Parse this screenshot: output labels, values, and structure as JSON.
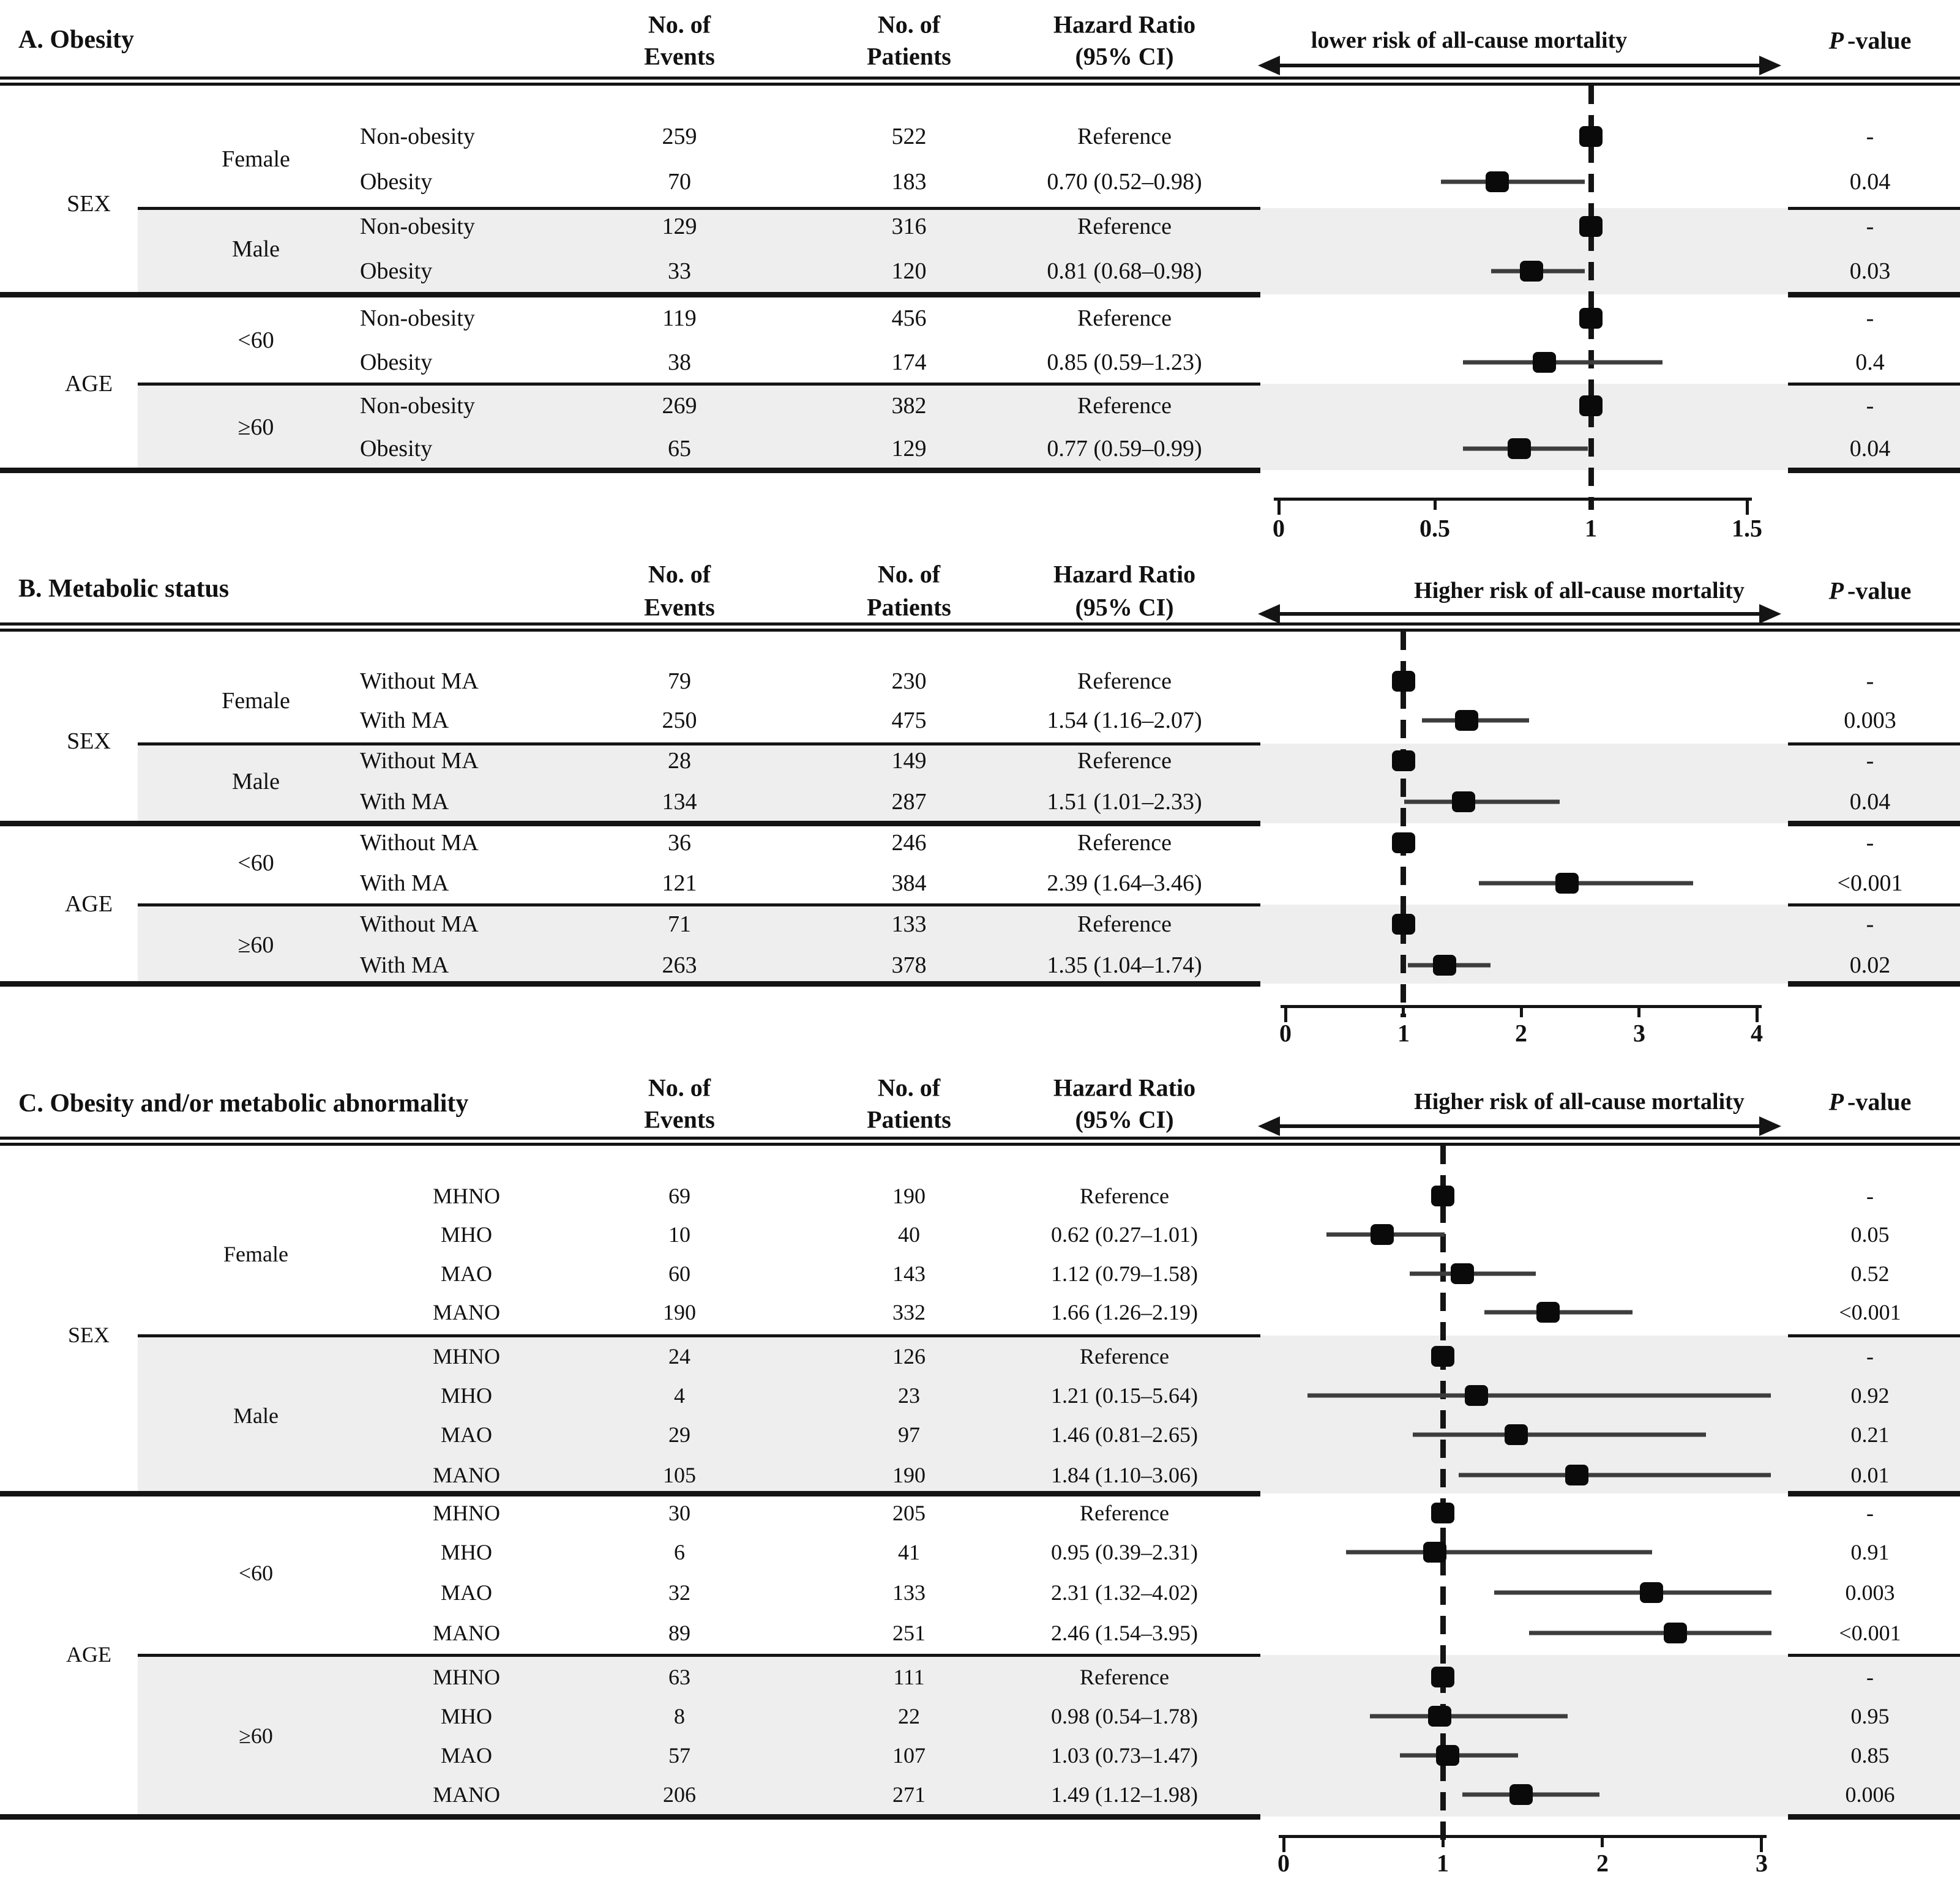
{
  "figure_header": {
    "col_events": [
      "No. of",
      "Events"
    ],
    "col_patients": [
      "No. of",
      "Patients"
    ],
    "col_hr": [
      "Hazard Ratio",
      "(95% CI)"
    ],
    "col_p_italic": "P",
    "col_p_rest": "-value"
  },
  "chart_data": [
    {
      "type": "forest",
      "panel": "A",
      "title": "A. Obesity",
      "arrow_label": "lower risk of all-cause mortality",
      "xlim": [
        0,
        1.5
      ],
      "xticks": [
        "0",
        "0.5",
        "1",
        "1.5"
      ],
      "xtick_values": [
        0,
        0.5,
        1,
        1.5
      ],
      "reference_line": 1,
      "legend_position": "none",
      "grid": false,
      "sections": [
        {
          "category": "SEX",
          "subgroups": [
            {
              "label": "Female",
              "shaded": false,
              "rows": [
                {
                  "arm": "Non-obesity",
                  "events": "259",
                  "patients": "522",
                  "hr_text": "Reference",
                  "hr": 1.0,
                  "ci": null,
                  "p": "-"
                },
                {
                  "arm": "Obesity",
                  "events": "70",
                  "patients": "183",
                  "hr_text": "0.70 (0.52–0.98)",
                  "hr": 0.7,
                  "ci": [
                    0.52,
                    0.98
                  ],
                  "p": "0.04"
                }
              ]
            },
            {
              "label": "Male",
              "shaded": true,
              "rows": [
                {
                  "arm": "Non-obesity",
                  "events": "129",
                  "patients": "316",
                  "hr_text": "Reference",
                  "hr": 1.0,
                  "ci": null,
                  "p": "-"
                },
                {
                  "arm": "Obesity",
                  "events": "33",
                  "patients": "120",
                  "hr_text": "0.81 (0.68–0.98)",
                  "hr": 0.81,
                  "ci": [
                    0.68,
                    0.98
                  ],
                  "p": "0.03"
                }
              ]
            }
          ]
        },
        {
          "category": "AGE",
          "subgroups": [
            {
              "label": "<60",
              "shaded": false,
              "rows": [
                {
                  "arm": "Non-obesity",
                  "events": "119",
                  "patients": "456",
                  "hr_text": "Reference",
                  "hr": 1.0,
                  "ci": null,
                  "p": "-"
                },
                {
                  "arm": "Obesity",
                  "events": "38",
                  "patients": "174",
                  "hr_text": "0.85 (0.59–1.23)",
                  "hr": 0.85,
                  "ci": [
                    0.59,
                    1.23
                  ],
                  "p": "0.4"
                }
              ]
            },
            {
              "label": "≥60",
              "shaded": true,
              "rows": [
                {
                  "arm": "Non-obesity",
                  "events": "269",
                  "patients": "382",
                  "hr_text": "Reference",
                  "hr": 1.0,
                  "ci": null,
                  "p": "-"
                },
                {
                  "arm": "Obesity",
                  "events": "65",
                  "patients": "129",
                  "hr_text": "0.77 (0.59–0.99)",
                  "hr": 0.77,
                  "ci": [
                    0.59,
                    0.99
                  ],
                  "p": "0.04"
                }
              ]
            }
          ]
        }
      ]
    },
    {
      "type": "forest",
      "panel": "B",
      "title": "B. Metabolic status",
      "arrow_label": "Higher risk of all-cause mortality",
      "xlim": [
        0,
        4
      ],
      "xticks": [
        "0",
        "1",
        "2",
        "3",
        "4"
      ],
      "xtick_values": [
        0,
        1,
        2,
        3,
        4
      ],
      "reference_line": 1,
      "legend_position": "none",
      "grid": false,
      "sections": [
        {
          "category": "SEX",
          "subgroups": [
            {
              "label": "Female",
              "shaded": false,
              "rows": [
                {
                  "arm": "Without MA",
                  "events": "79",
                  "patients": "230",
                  "hr_text": "Reference",
                  "hr": 1.0,
                  "ci": null,
                  "p": "-"
                },
                {
                  "arm": "With MA",
                  "events": "250",
                  "patients": "475",
                  "hr_text": "1.54 (1.16–2.07)",
                  "hr": 1.54,
                  "ci": [
                    1.16,
                    2.07
                  ],
                  "p": "0.003"
                }
              ]
            },
            {
              "label": "Male",
              "shaded": true,
              "rows": [
                {
                  "arm": "Without MA",
                  "events": "28",
                  "patients": "149",
                  "hr_text": "Reference",
                  "hr": 1.0,
                  "ci": null,
                  "p": "-"
                },
                {
                  "arm": "With MA",
                  "events": "134",
                  "patients": "287",
                  "hr_text": "1.51 (1.01–2.33)",
                  "hr": 1.51,
                  "ci": [
                    1.01,
                    2.33
                  ],
                  "p": "0.04"
                }
              ]
            }
          ]
        },
        {
          "category": "AGE",
          "subgroups": [
            {
              "label": "<60",
              "shaded": false,
              "rows": [
                {
                  "arm": "Without MA",
                  "events": "36",
                  "patients": "246",
                  "hr_text": "Reference",
                  "hr": 1.0,
                  "ci": null,
                  "p": "-"
                },
                {
                  "arm": "With MA",
                  "events": "121",
                  "patients": "384",
                  "hr_text": "2.39 (1.64–3.46)",
                  "hr": 2.39,
                  "ci": [
                    1.64,
                    3.46
                  ],
                  "p": "<0.001"
                }
              ]
            },
            {
              "label": "≥60",
              "shaded": true,
              "rows": [
                {
                  "arm": "Without MA",
                  "events": "71",
                  "patients": "133",
                  "hr_text": "Reference",
                  "hr": 1.0,
                  "ci": null,
                  "p": "-"
                },
                {
                  "arm": "With MA",
                  "events": "263",
                  "patients": "378",
                  "hr_text": "1.35 (1.04–1.74)",
                  "hr": 1.35,
                  "ci": [
                    1.04,
                    1.74
                  ],
                  "p": "0.02"
                }
              ]
            }
          ]
        }
      ]
    },
    {
      "type": "forest",
      "panel": "C",
      "title": "C. Obesity and/or metabolic abnormality",
      "arrow_label": "Higher risk of all-cause mortality",
      "xlim": [
        0,
        3
      ],
      "xticks": [
        "0",
        "1",
        "2",
        "3"
      ],
      "xtick_values": [
        0,
        1,
        2,
        3
      ],
      "reference_line": 1,
      "legend_position": "none",
      "grid": false,
      "sections": [
        {
          "category": "SEX",
          "subgroups": [
            {
              "label": "Female",
              "shaded": false,
              "rows": [
                {
                  "arm": "MHNO",
                  "events": "69",
                  "patients": "190",
                  "hr_text": "Reference",
                  "hr": 1.0,
                  "ci": null,
                  "p": "-"
                },
                {
                  "arm": "MHO",
                  "events": "10",
                  "patients": "40",
                  "hr_text": "0.62 (0.27–1.01)",
                  "hr": 0.62,
                  "ci": [
                    0.27,
                    1.01
                  ],
                  "p": "0.05"
                },
                {
                  "arm": "MAO",
                  "events": "60",
                  "patients": "143",
                  "hr_text": "1.12 (0.79–1.58)",
                  "hr": 1.12,
                  "ci": [
                    0.79,
                    1.58
                  ],
                  "p": "0.52"
                },
                {
                  "arm": "MANO",
                  "events": "190",
                  "patients": "332",
                  "hr_text": "1.66 (1.26–2.19)",
                  "hr": 1.66,
                  "ci": [
                    1.26,
                    2.19
                  ],
                  "p": "<0.001"
                }
              ]
            },
            {
              "label": "Male",
              "shaded": true,
              "rows": [
                {
                  "arm": "MHNO",
                  "events": "24",
                  "patients": "126",
                  "hr_text": "Reference",
                  "hr": 1.0,
                  "ci": null,
                  "p": "-"
                },
                {
                  "arm": "MHO",
                  "events": "4",
                  "patients": "23",
                  "hr_text": "1.21 (0.15–5.64)",
                  "hr": 1.21,
                  "ci": [
                    0.15,
                    5.64
                  ],
                  "p": "0.92"
                },
                {
                  "arm": "MAO",
                  "events": "29",
                  "patients": "97",
                  "hr_text": "1.46 (0.81–2.65)",
                  "hr": 1.46,
                  "ci": [
                    0.81,
                    2.65
                  ],
                  "p": "0.21"
                },
                {
                  "arm": "MANO",
                  "events": "105",
                  "patients": "190",
                  "hr_text": "1.84 (1.10–3.06)",
                  "hr": 1.84,
                  "ci": [
                    1.1,
                    3.06
                  ],
                  "p": "0.01"
                }
              ]
            }
          ]
        },
        {
          "category": "AGE",
          "subgroups": [
            {
              "label": "<60",
              "shaded": false,
              "rows": [
                {
                  "arm": "MHNO",
                  "events": "30",
                  "patients": "205",
                  "hr_text": "Reference",
                  "hr": 1.0,
                  "ci": null,
                  "p": "-"
                },
                {
                  "arm": "MHO",
                  "events": "6",
                  "patients": "41",
                  "hr_text": "0.95 (0.39–2.31)",
                  "hr": 0.95,
                  "ci": [
                    0.39,
                    2.31
                  ],
                  "p": "0.91"
                },
                {
                  "arm": "MAO",
                  "events": "32",
                  "patients": "133",
                  "hr_text": "2.31 (1.32–4.02)",
                  "hr": 2.31,
                  "ci": [
                    1.32,
                    4.02
                  ],
                  "p": "0.003"
                },
                {
                  "arm": "MANO",
                  "events": "89",
                  "patients": "251",
                  "hr_text": "2.46 (1.54–3.95)",
                  "hr": 2.46,
                  "ci": [
                    1.54,
                    3.95
                  ],
                  "p": "<0.001"
                }
              ]
            },
            {
              "label": "≥60",
              "shaded": true,
              "rows": [
                {
                  "arm": "MHNO",
                  "events": "63",
                  "patients": "111",
                  "hr_text": "Reference",
                  "hr": 1.0,
                  "ci": null,
                  "p": "-"
                },
                {
                  "arm": "MHO",
                  "events": "8",
                  "patients": "22",
                  "hr_text": "0.98 (0.54–1.78)",
                  "hr": 0.98,
                  "ci": [
                    0.54,
                    1.78
                  ],
                  "p": "0.95"
                },
                {
                  "arm": "MAO",
                  "events": "57",
                  "patients": "107",
                  "hr_text": "1.03 (0.73–1.47)",
                  "hr": 1.03,
                  "ci": [
                    0.73,
                    1.47
                  ],
                  "p": "0.85"
                },
                {
                  "arm": "MANO",
                  "events": "206",
                  "patients": "271",
                  "hr_text": "1.49 (1.12–1.98)",
                  "hr": 1.49,
                  "ci": [
                    1.12,
                    1.98
                  ],
                  "p": "0.006"
                }
              ]
            }
          ]
        }
      ]
    }
  ]
}
